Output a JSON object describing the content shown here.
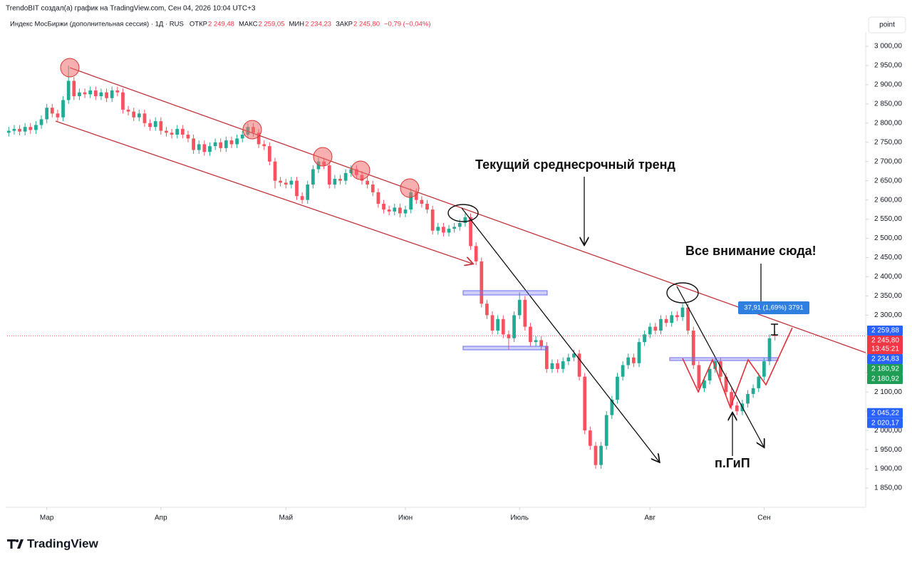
{
  "header": {
    "attribution": "TrendoBIT создал(а) график на TradingView.com, Сен 04, 2026 10:04 UTC+3",
    "symbol": "Индекс МосБиржи (дополнительная сессия) · 1Д · RUS",
    "ohlc": [
      {
        "label": "ОТКР",
        "value": "2 249,48"
      },
      {
        "label": "МАКС",
        "value": "2 259,05"
      },
      {
        "label": "МИН",
        "value": "2 234,23"
      },
      {
        "label": "ЗАКР",
        "value": "2 245,80"
      }
    ],
    "change": "−0,79 (−0,04%)"
  },
  "button": "point",
  "brand": "TradingView",
  "chart_data": {
    "type": "candlestick",
    "up_color": "#22ab94",
    "down_color": "#f7525f",
    "grid": false,
    "candles": [
      [
        2775,
        2790,
        2765,
        2780
      ],
      [
        2780,
        2795,
        2770,
        2785
      ],
      [
        2785,
        2795,
        2768,
        2778
      ],
      [
        2778,
        2800,
        2768,
        2790
      ],
      [
        2790,
        2800,
        2772,
        2782
      ],
      [
        2782,
        2805,
        2772,
        2795
      ],
      [
        2795,
        2820,
        2785,
        2810
      ],
      [
        2810,
        2850,
        2800,
        2840
      ],
      [
        2840,
        2850,
        2815,
        2825
      ],
      [
        2825,
        2835,
        2805,
        2815
      ],
      [
        2815,
        2870,
        2805,
        2860
      ],
      [
        2860,
        2950,
        2850,
        2910
      ],
      [
        2910,
        2920,
        2860,
        2870
      ],
      [
        2870,
        2890,
        2860,
        2880
      ],
      [
        2880,
        2890,
        2865,
        2875
      ],
      [
        2875,
        2895,
        2865,
        2885
      ],
      [
        2885,
        2895,
        2860,
        2870
      ],
      [
        2870,
        2890,
        2860,
        2880
      ],
      [
        2880,
        2890,
        2855,
        2865
      ],
      [
        2865,
        2895,
        2855,
        2885
      ],
      [
        2885,
        2895,
        2870,
        2880
      ],
      [
        2880,
        2890,
        2825,
        2835
      ],
      [
        2835,
        2845,
        2820,
        2830
      ],
      [
        2830,
        2840,
        2805,
        2815
      ],
      [
        2815,
        2835,
        2805,
        2825
      ],
      [
        2825,
        2835,
        2790,
        2800
      ],
      [
        2800,
        2810,
        2780,
        2790
      ],
      [
        2790,
        2815,
        2780,
        2805
      ],
      [
        2805,
        2815,
        2770,
        2780
      ],
      [
        2780,
        2790,
        2765,
        2775
      ],
      [
        2775,
        2785,
        2760,
        2770
      ],
      [
        2770,
        2795,
        2760,
        2785
      ],
      [
        2785,
        2795,
        2760,
        2770
      ],
      [
        2770,
        2780,
        2750,
        2760
      ],
      [
        2760,
        2770,
        2720,
        2730
      ],
      [
        2730,
        2755,
        2720,
        2745
      ],
      [
        2745,
        2755,
        2715,
        2725
      ],
      [
        2725,
        2750,
        2715,
        2740
      ],
      [
        2740,
        2760,
        2730,
        2750
      ],
      [
        2750,
        2760,
        2725,
        2735
      ],
      [
        2735,
        2765,
        2725,
        2755
      ],
      [
        2755,
        2765,
        2735,
        2745
      ],
      [
        2745,
        2770,
        2735,
        2760
      ],
      [
        2760,
        2780,
        2750,
        2770
      ],
      [
        2770,
        2800,
        2760,
        2790
      ],
      [
        2790,
        2800,
        2765,
        2775
      ],
      [
        2775,
        2785,
        2735,
        2745
      ],
      [
        2745,
        2755,
        2730,
        2740
      ],
      [
        2740,
        2750,
        2690,
        2700
      ],
      [
        2700,
        2710,
        2630,
        2650
      ],
      [
        2650,
        2660,
        2635,
        2645
      ],
      [
        2645,
        2655,
        2630,
        2640
      ],
      [
        2640,
        2660,
        2630,
        2650
      ],
      [
        2650,
        2660,
        2600,
        2610
      ],
      [
        2610,
        2620,
        2590,
        2600
      ],
      [
        2600,
        2650,
        2590,
        2640
      ],
      [
        2640,
        2690,
        2630,
        2680
      ],
      [
        2680,
        2710,
        2670,
        2700
      ],
      [
        2700,
        2710,
        2680,
        2690
      ],
      [
        2690,
        2700,
        2630,
        2640
      ],
      [
        2640,
        2665,
        2630,
        2655
      ],
      [
        2655,
        2665,
        2640,
        2650
      ],
      [
        2650,
        2680,
        2640,
        2670
      ],
      [
        2670,
        2690,
        2660,
        2680
      ],
      [
        2680,
        2690,
        2655,
        2665
      ],
      [
        2665,
        2675,
        2640,
        2650
      ],
      [
        2650,
        2660,
        2630,
        2640
      ],
      [
        2640,
        2650,
        2610,
        2620
      ],
      [
        2620,
        2630,
        2580,
        2590
      ],
      [
        2590,
        2600,
        2565,
        2575
      ],
      [
        2575,
        2585,
        2560,
        2570
      ],
      [
        2570,
        2590,
        2560,
        2580
      ],
      [
        2580,
        2590,
        2555,
        2565
      ],
      [
        2565,
        2585,
        2555,
        2575
      ],
      [
        2575,
        2630,
        2565,
        2620
      ],
      [
        2620,
        2630,
        2590,
        2600
      ],
      [
        2600,
        2610,
        2580,
        2590
      ],
      [
        2590,
        2600,
        2565,
        2575
      ],
      [
        2575,
        2585,
        2510,
        2520
      ],
      [
        2520,
        2540,
        2510,
        2530
      ],
      [
        2530,
        2540,
        2505,
        2515
      ],
      [
        2515,
        2535,
        2505,
        2525
      ],
      [
        2525,
        2540,
        2515,
        2530
      ],
      [
        2530,
        2550,
        2520,
        2540
      ],
      [
        2540,
        2565,
        2530,
        2555
      ],
      [
        2555,
        2565,
        2470,
        2480
      ],
      [
        2480,
        2490,
        2430,
        2440
      ],
      [
        2440,
        2450,
        2320,
        2330
      ],
      [
        2330,
        2340,
        2290,
        2300
      ],
      [
        2300,
        2310,
        2250,
        2260
      ],
      [
        2260,
        2300,
        2250,
        2290
      ],
      [
        2290,
        2300,
        2240,
        2250
      ],
      [
        2250,
        2260,
        2210,
        2240
      ],
      [
        2240,
        2310,
        2230,
        2300
      ],
      [
        2300,
        2360,
        2290,
        2340
      ],
      [
        2340,
        2350,
        2260,
        2270
      ],
      [
        2270,
        2280,
        2220,
        2230
      ],
      [
        2230,
        2245,
        2220,
        2235
      ],
      [
        2235,
        2245,
        2210,
        2220
      ],
      [
        2220,
        2230,
        2150,
        2160
      ],
      [
        2160,
        2185,
        2150,
        2175
      ],
      [
        2175,
        2185,
        2150,
        2160
      ],
      [
        2160,
        2190,
        2150,
        2180
      ],
      [
        2180,
        2200,
        2170,
        2190
      ],
      [
        2190,
        2210,
        2180,
        2200
      ],
      [
        2200,
        2210,
        2130,
        2140
      ],
      [
        2140,
        2150,
        1990,
        2000
      ],
      [
        2000,
        2010,
        1950,
        1960
      ],
      [
        1960,
        1970,
        1900,
        1910
      ],
      [
        1910,
        1970,
        1900,
        1960
      ],
      [
        1960,
        2050,
        1950,
        2040
      ],
      [
        2040,
        2090,
        2030,
        2080
      ],
      [
        2080,
        2150,
        2070,
        2140
      ],
      [
        2140,
        2180,
        2130,
        2170
      ],
      [
        2170,
        2200,
        2160,
        2190
      ],
      [
        2190,
        2200,
        2165,
        2175
      ],
      [
        2175,
        2240,
        2165,
        2230
      ],
      [
        2230,
        2260,
        2220,
        2250
      ],
      [
        2250,
        2280,
        2240,
        2270
      ],
      [
        2270,
        2280,
        2250,
        2260
      ],
      [
        2260,
        2300,
        2250,
        2290
      ],
      [
        2290,
        2300,
        2270,
        2280
      ],
      [
        2280,
        2310,
        2270,
        2300
      ],
      [
        2300,
        2310,
        2285,
        2295
      ],
      [
        2295,
        2330,
        2285,
        2320
      ],
      [
        2320,
        2330,
        2250,
        2260
      ],
      [
        2260,
        2270,
        2160,
        2170
      ],
      [
        2170,
        2180,
        2100,
        2110
      ],
      [
        2110,
        2140,
        2100,
        2130
      ],
      [
        2130,
        2170,
        2120,
        2160
      ],
      [
        2160,
        2190,
        2150,
        2180
      ],
      [
        2180,
        2190,
        2130,
        2140
      ],
      [
        2140,
        2150,
        2090,
        2100
      ],
      [
        2100,
        2110,
        2055,
        2065
      ],
      [
        2065,
        2075,
        2040,
        2050
      ],
      [
        2050,
        2080,
        2040,
        2070
      ],
      [
        2070,
        2105,
        2060,
        2095
      ],
      [
        2095,
        2120,
        2085,
        2110
      ],
      [
        2110,
        2150,
        2100,
        2140
      ],
      [
        2140,
        2190,
        2130,
        2180
      ],
      [
        2180,
        2250,
        2170,
        2240
      ],
      [
        2249.48,
        2259.05,
        2234.23,
        2245.8
      ]
    ],
    "xlim": [
      -0.3,
      157.7
    ],
    "xticks": [
      {
        "value": 7,
        "label": "Мар"
      },
      {
        "value": 28,
        "label": "Апр"
      },
      {
        "value": 51,
        "label": "Май"
      },
      {
        "value": 73,
        "label": "Июн"
      },
      {
        "value": 94,
        "label": "Июль"
      },
      {
        "value": 118,
        "label": "Авг"
      },
      {
        "value": 139,
        "label": "Сен"
      }
    ],
    "ylim": [
      1800,
      3037
    ],
    "yticks": [
      {
        "value": 1850,
        "label": "1 850,00"
      },
      {
        "value": 1900,
        "label": "1 900,00"
      },
      {
        "value": 1950,
        "label": "1 950,00"
      },
      {
        "value": 2000,
        "label": "2 000,00"
      },
      {
        "value": 2050,
        "label": "2 050,00"
      },
      {
        "value": 2100,
        "label": "2 100,00"
      },
      {
        "value": 2150,
        "label": "2 150,00"
      },
      {
        "value": 2200,
        "label": "2 200,00"
      },
      {
        "value": 2250,
        "label": "2 250,00"
      },
      {
        "value": 2300,
        "label": "2 300,00"
      },
      {
        "value": 2350,
        "label": "2 350,00"
      },
      {
        "value": 2400,
        "label": "2 400,00"
      },
      {
        "value": 2450,
        "label": "2 450,00"
      },
      {
        "value": 2500,
        "label": "2 500,00"
      },
      {
        "value": 2550,
        "label": "2 550,00"
      },
      {
        "value": 2600,
        "label": "2 600,00"
      },
      {
        "value": 2650,
        "label": "2 650,00"
      },
      {
        "value": 2700,
        "label": "2 700,00"
      },
      {
        "value": 2750,
        "label": "2 750,00"
      },
      {
        "value": 2800,
        "label": "2 800,00"
      },
      {
        "value": 2850,
        "label": "2 850,00"
      },
      {
        "value": 2900,
        "label": "2 900,00"
      },
      {
        "value": 2950,
        "label": "2 950,00"
      },
      {
        "value": 3000,
        "label": "3 000,00"
      }
    ],
    "price_labels": [
      {
        "value": 2259.88,
        "label": "2 259,88",
        "color": "#2962ff"
      },
      {
        "value": 2245.8,
        "label": "2 245,80",
        "color": "#f23645",
        "countdown": "13:45:21"
      },
      {
        "value": 2234.83,
        "label": "2 234,83",
        "color": "#2962ff"
      },
      {
        "value": 2180.92,
        "label": "2 180,92",
        "color": "#1f9d55"
      },
      {
        "value": 2180.92,
        "label": "2 180,92",
        "color": "#1f9d55"
      },
      {
        "value": 2045.22,
        "label": "2 045,22",
        "color": "#2962ff"
      },
      {
        "value": 2020.17,
        "label": "2 020,17",
        "color": "#2962ff"
      }
    ],
    "annotations": {
      "trend": "Текущий среднесрочный тренд",
      "focus": "Все внимание сюда!",
      "pattern": "п.ГиП",
      "measure": "37,91 (1,69%) 3791"
    }
  }
}
